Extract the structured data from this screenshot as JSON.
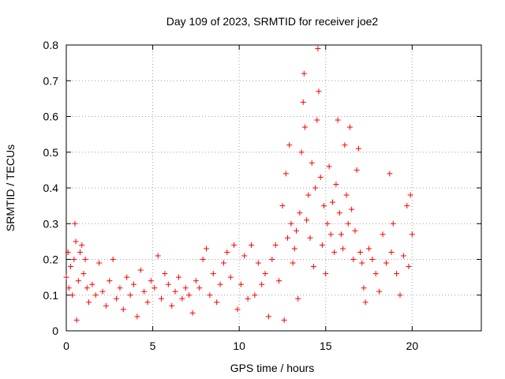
{
  "chart_data": {
    "type": "scatter",
    "title": "Day 109 of 2023, SRMTID for receiver joe2",
    "xlabel": "GPS time / hours",
    "ylabel": "SRMTID / TECUs",
    "xlim": [
      0,
      24
    ],
    "ylim": [
      0,
      0.8
    ],
    "xticks": [
      0,
      5,
      10,
      15,
      20
    ],
    "yticks": [
      0,
      0.1,
      0.2,
      0.3,
      0.4,
      0.5,
      0.6,
      0.7,
      0.8
    ],
    "ytick_labels": [
      "0",
      "0.1",
      "0.2",
      "0.3",
      "0.4",
      "0.5",
      "0.6",
      "0.7",
      "0.8"
    ],
    "grid": true,
    "marker": "+",
    "marker_color": "#ff0000",
    "series": [
      {
        "name": "SRMTID",
        "points": [
          [
            0.0,
            0.15
          ],
          [
            0.1,
            0.22
          ],
          [
            0.15,
            0.12
          ],
          [
            0.25,
            0.18
          ],
          [
            0.35,
            0.1
          ],
          [
            0.45,
            0.2
          ],
          [
            0.5,
            0.3
          ],
          [
            0.55,
            0.25
          ],
          [
            0.6,
            0.03
          ],
          [
            0.7,
            0.14
          ],
          [
            0.8,
            0.22
          ],
          [
            0.9,
            0.24
          ],
          [
            1.0,
            0.16
          ],
          [
            1.1,
            0.2
          ],
          [
            1.2,
            0.12
          ],
          [
            1.3,
            0.08
          ],
          [
            1.5,
            0.13
          ],
          [
            1.7,
            0.1
          ],
          [
            1.9,
            0.19
          ],
          [
            2.1,
            0.11
          ],
          [
            2.3,
            0.07
          ],
          [
            2.5,
            0.14
          ],
          [
            2.7,
            0.2
          ],
          [
            2.9,
            0.09
          ],
          [
            3.1,
            0.12
          ],
          [
            3.3,
            0.06
          ],
          [
            3.5,
            0.15
          ],
          [
            3.7,
            0.1
          ],
          [
            3.9,
            0.13
          ],
          [
            4.1,
            0.04
          ],
          [
            4.3,
            0.17
          ],
          [
            4.5,
            0.11
          ],
          [
            4.7,
            0.08
          ],
          [
            4.9,
            0.14
          ],
          [
            5.1,
            0.12
          ],
          [
            5.3,
            0.21
          ],
          [
            5.5,
            0.09
          ],
          [
            5.7,
            0.16
          ],
          [
            5.9,
            0.13
          ],
          [
            6.1,
            0.07
          ],
          [
            6.3,
            0.11
          ],
          [
            6.5,
            0.15
          ],
          [
            6.7,
            0.09
          ],
          [
            6.9,
            0.12
          ],
          [
            7.1,
            0.1
          ],
          [
            7.3,
            0.05
          ],
          [
            7.5,
            0.14
          ],
          [
            7.7,
            0.12
          ],
          [
            7.9,
            0.2
          ],
          [
            8.1,
            0.23
          ],
          [
            8.3,
            0.1
          ],
          [
            8.5,
            0.16
          ],
          [
            8.7,
            0.08
          ],
          [
            8.9,
            0.13
          ],
          [
            9.1,
            0.19
          ],
          [
            9.3,
            0.22
          ],
          [
            9.5,
            0.15
          ],
          [
            9.7,
            0.24
          ],
          [
            9.9,
            0.06
          ],
          [
            10.1,
            0.13
          ],
          [
            10.3,
            0.21
          ],
          [
            10.5,
            0.09
          ],
          [
            10.7,
            0.24
          ],
          [
            10.9,
            0.1
          ],
          [
            11.1,
            0.19
          ],
          [
            11.3,
            0.13
          ],
          [
            11.5,
            0.16
          ],
          [
            11.7,
            0.04
          ],
          [
            11.9,
            0.2
          ],
          [
            12.1,
            0.24
          ],
          [
            12.3,
            0.14
          ],
          [
            12.5,
            0.35
          ],
          [
            12.6,
            0.03
          ],
          [
            12.7,
            0.44
          ],
          [
            12.8,
            0.26
          ],
          [
            12.9,
            0.52
          ],
          [
            13.0,
            0.3
          ],
          [
            13.1,
            0.19
          ],
          [
            13.2,
            0.23
          ],
          [
            13.3,
            0.28
          ],
          [
            13.4,
            0.09
          ],
          [
            13.5,
            0.33
          ],
          [
            13.6,
            0.5
          ],
          [
            13.7,
            0.64
          ],
          [
            13.75,
            0.72
          ],
          [
            13.8,
            0.57
          ],
          [
            13.9,
            0.31
          ],
          [
            14.0,
            0.38
          ],
          [
            14.1,
            0.26
          ],
          [
            14.2,
            0.47
          ],
          [
            14.3,
            0.18
          ],
          [
            14.4,
            0.4
          ],
          [
            14.5,
            0.59
          ],
          [
            14.55,
            0.79
          ],
          [
            14.6,
            0.67
          ],
          [
            14.7,
            0.43
          ],
          [
            14.8,
            0.24
          ],
          [
            14.9,
            0.35
          ],
          [
            15.0,
            0.16
          ],
          [
            15.1,
            0.3
          ],
          [
            15.2,
            0.46
          ],
          [
            15.3,
            0.27
          ],
          [
            15.4,
            0.36
          ],
          [
            15.5,
            0.22
          ],
          [
            15.6,
            0.41
          ],
          [
            15.7,
            0.59
          ],
          [
            15.8,
            0.33
          ],
          [
            15.9,
            0.27
          ],
          [
            16.0,
            0.23
          ],
          [
            16.1,
            0.52
          ],
          [
            16.2,
            0.38
          ],
          [
            16.3,
            0.3
          ],
          [
            16.4,
            0.57
          ],
          [
            16.5,
            0.34
          ],
          [
            16.6,
            0.2
          ],
          [
            16.7,
            0.28
          ],
          [
            16.8,
            0.45
          ],
          [
            16.9,
            0.51
          ],
          [
            17.0,
            0.22
          ],
          [
            17.1,
            0.19
          ],
          [
            17.2,
            0.12
          ],
          [
            17.3,
            0.08
          ],
          [
            17.5,
            0.23
          ],
          [
            17.7,
            0.2
          ],
          [
            17.9,
            0.16
          ],
          [
            18.1,
            0.11
          ],
          [
            18.3,
            0.27
          ],
          [
            18.5,
            0.19
          ],
          [
            18.7,
            0.44
          ],
          [
            18.8,
            0.22
          ],
          [
            18.9,
            0.3
          ],
          [
            19.1,
            0.16
          ],
          [
            19.3,
            0.1
          ],
          [
            19.5,
            0.21
          ],
          [
            19.7,
            0.35
          ],
          [
            19.8,
            0.18
          ],
          [
            19.9,
            0.38
          ],
          [
            20.0,
            0.27
          ]
        ]
      }
    ]
  }
}
